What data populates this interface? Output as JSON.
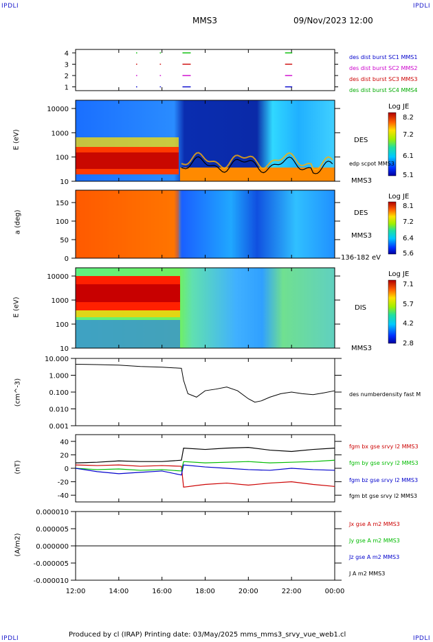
{
  "corners": {
    "tl": "IPDLI",
    "tr": "IPDLI",
    "bl": "IPDLI",
    "br": "IPDLI"
  },
  "header": {
    "spacecraft": "MMS3",
    "datetime": "09/Nov/2023 12:00"
  },
  "footer": {
    "text": "Produced by cl (IRAP)   Printing date: 03/May/2025   mms_mms3_srvy_vue_web1.cl"
  },
  "colors": {
    "mms1": "#0000cc",
    "mms2": "#cc00cc",
    "mms3": "#cc0000",
    "mms4": "#00bb00",
    "black": "#000000"
  },
  "time_axis": {
    "ticks": [
      "12:00",
      "14:00",
      "16:00",
      "18:00",
      "20:00",
      "22:00",
      "00:00"
    ],
    "start_hour": 12,
    "end_hour": 24
  },
  "panel_burst": {
    "yticks": [
      "4",
      "3",
      "2",
      "1"
    ],
    "labels": [
      "des dist burst SC1 MMS1",
      "des dist burst SC2 MMS2",
      "des dist burst SC3 MMS3",
      "des dist burst SC4 MMS4"
    ],
    "intervals_hours": [
      [
        14.8,
        14.82
      ],
      [
        15.9,
        15.92
      ],
      [
        16.95,
        17.3
      ],
      [
        21.7,
        22.0
      ]
    ]
  },
  "panel_des_energy": {
    "ylabel": "E (eV)",
    "yticks": [
      "10000",
      "1000",
      "100",
      "10"
    ],
    "right_label_1": "DES",
    "right_label_2": "edp scpot MMS3",
    "right_label_3": "MMS3",
    "cb_title": "Log JE",
    "cb_ticks": [
      "8.2",
      "7.2",
      "6.1",
      "5.1"
    ]
  },
  "panel_des_pitch": {
    "ylabel": "a (deg)",
    "yticks": [
      "150",
      "100",
      "50",
      "0"
    ],
    "right_label_1": "DES",
    "right_label_2": "MMS3",
    "right_label_3": "136-182 eV",
    "cb_title": "Log JE",
    "cb_ticks": [
      "8.1",
      "7.2",
      "6.4",
      "5.6"
    ]
  },
  "panel_dis_energy": {
    "ylabel": "E (eV)",
    "yticks": [
      "10000",
      "1000",
      "100",
      "10"
    ],
    "right_label_1": "DIS",
    "right_label_2": "MMS3",
    "cb_title": "Log JE",
    "cb_ticks": [
      "7.1",
      "5.7",
      "4.2",
      "2.8"
    ]
  },
  "panel_density": {
    "ylabel": "(cm^-3)",
    "yticks": [
      "10.000",
      "1.000",
      "0.100",
      "0.010",
      "0.001"
    ],
    "right_label": "des numberdensity fast M"
  },
  "panel_bfield": {
    "ylabel": "(nT)",
    "yticks": [
      "40",
      "20",
      "0",
      "-20",
      "-40"
    ],
    "labels": [
      "fgm bx gse srvy l2 MMS3",
      "fgm by gse srvy l2 MMS3",
      "fgm bz gse srvy l2 MMS3",
      "fgm bt gse srvy l2 MMS3"
    ]
  },
  "panel_current": {
    "ylabel": "(A/m2)",
    "yticks": [
      "0.000010",
      "0.000005",
      "0.000000",
      "-0.000005",
      "-0.000010"
    ],
    "labels": [
      "Jx gse A m2 MMS3",
      "Jy gse A m2 MMS3",
      "Jz gse A m2 MMS3",
      "J A m2 MMS3"
    ]
  },
  "chart_data": [
    {
      "type": "line",
      "title": "",
      "ylabel": "(cm^-3)",
      "xlabel": "",
      "yscale": "log",
      "ylim": [
        0.001,
        10
      ],
      "x_hours": [
        12,
        13,
        14,
        15,
        16,
        16.9,
        17.0,
        17.2,
        17.6,
        18.0,
        18.5,
        19.0,
        19.5,
        20.0,
        20.3,
        20.6,
        21.0,
        21.5,
        22.0,
        22.5,
        23.0,
        23.5,
        24.0
      ],
      "series": [
        {
          "name": "des numberdensity fast M",
          "color": "#000000",
          "values": [
            4.5,
            4.3,
            4.0,
            3.3,
            3.0,
            2.6,
            0.5,
            0.08,
            0.05,
            0.12,
            0.15,
            0.2,
            0.12,
            0.04,
            0.025,
            0.03,
            0.05,
            0.08,
            0.1,
            0.08,
            0.07,
            0.09,
            0.12
          ]
        }
      ]
    },
    {
      "type": "line",
      "title": "",
      "ylabel": "(nT)",
      "xlabel": "",
      "ylim": [
        -50,
        50
      ],
      "x_hours": [
        12,
        13,
        14,
        15,
        16,
        16.9,
        17.0,
        18.0,
        19.0,
        20.0,
        21.0,
        22.0,
        23.0,
        24.0
      ],
      "series": [
        {
          "name": "fgm bx gse srvy l2 MMS3",
          "color": "#cc0000",
          "values": [
            5,
            4,
            5,
            3,
            4,
            3,
            -28,
            -24,
            -22,
            -25,
            -22,
            -20,
            -24,
            -27
          ]
        },
        {
          "name": "fgm by gse srvy l2 MMS3",
          "color": "#00bb00",
          "values": [
            0,
            -2,
            -1,
            -3,
            -2,
            -4,
            10,
            8,
            9,
            10,
            8,
            9,
            10,
            12
          ]
        },
        {
          "name": "fgm bz gse srvy l2 MMS3",
          "color": "#0000cc",
          "values": [
            0,
            -5,
            -8,
            -6,
            -4,
            -10,
            5,
            2,
            0,
            -2,
            -3,
            0,
            -2,
            -3
          ]
        },
        {
          "name": "fgm bt gse srvy l2 MMS3",
          "color": "#000000",
          "values": [
            8,
            9,
            11,
            10,
            10,
            12,
            30,
            28,
            30,
            31,
            27,
            25,
            28,
            30
          ]
        }
      ]
    },
    {
      "type": "line",
      "title": "",
      "ylabel": "(A/m2)",
      "xlabel": "",
      "ylim": [
        -1e-05,
        1e-05
      ],
      "x_hours": [
        12,
        16.9,
        17.0,
        24.0
      ],
      "series": [
        {
          "name": "J A m2 MMS3",
          "color": "#000000",
          "values": [
            0,
            0,
            0,
            0
          ]
        }
      ]
    }
  ]
}
